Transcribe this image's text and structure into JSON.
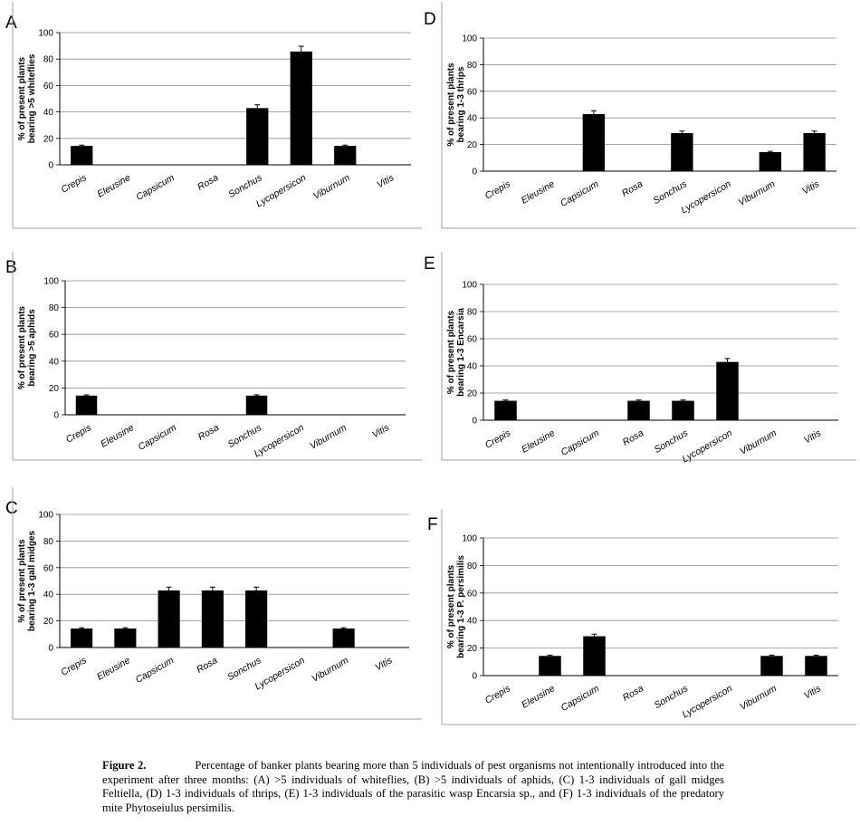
{
  "figure": {
    "caption_label": "Figure 2.",
    "caption_text": "Percentage of banker plants bearing more than 5 individuals of pest organisms not intentionally introduced into the experiment after three months: (A) >5 individuals of whiteflies, (B) >5 individuals of aphids, (C) 1-3 individuals of gall midges Feltiella, (D) 1-3 individuals of thrips, (E) 1-3 individuals of the parasitic wasp Encarsia sp., and (F) 1-3 individuals of the predatory mite Phytoseiulus persimilis."
  },
  "chart_data": [
    {
      "id": "A",
      "type": "bar",
      "ylabel_line1": "% of present plants",
      "ylabel_line2": "bearing >5 whiteflies",
      "categories": [
        "Crepis",
        "Eleusine",
        "Capsicum",
        "Rosa",
        "Sonchus",
        "Lycopersicon",
        "Viburnum",
        "Vitis"
      ],
      "values": [
        14.3,
        0,
        0,
        0,
        42.9,
        85.7,
        14.3,
        0
      ],
      "errors": [
        0.6,
        0,
        0,
        0,
        2.5,
        4.0,
        0.6,
        0
      ],
      "ylim": [
        0,
        100
      ],
      "yticks": [
        0,
        20,
        40,
        60,
        80,
        100
      ],
      "bar_color": "#000000",
      "grid": true
    },
    {
      "id": "B",
      "type": "bar",
      "ylabel_line1": "% of present plants",
      "ylabel_line2": "bearing >5 aphids",
      "categories": [
        "Crepis",
        "Eleusine",
        "Capsicum",
        "Rosa",
        "Sonchus",
        "Lycopersicon",
        "Viburnum",
        "Vitis"
      ],
      "values": [
        14.3,
        0,
        0,
        0,
        14.3,
        0,
        0,
        0
      ],
      "errors": [
        0.6,
        0,
        0,
        0,
        0.6,
        0,
        0,
        0
      ],
      "ylim": [
        0,
        100
      ],
      "yticks": [
        0,
        20,
        40,
        60,
        80,
        100
      ],
      "bar_color": "#000000",
      "grid": true
    },
    {
      "id": "C",
      "type": "bar",
      "ylabel_line1": "% of present plants",
      "ylabel_line2": "bearing 1-3 gall midges",
      "categories": [
        "Crepis",
        "Eleusine",
        "Capsicum",
        "Rosa",
        "Sonchus",
        "Lycopersicon",
        "Viburnum",
        "Vitis"
      ],
      "values": [
        14.3,
        14.3,
        42.9,
        42.9,
        42.9,
        0,
        14.3,
        0
      ],
      "errors": [
        0.6,
        0.6,
        2.5,
        2.5,
        2.5,
        0,
        0.6,
        0
      ],
      "ylim": [
        0,
        100
      ],
      "yticks": [
        0,
        20,
        40,
        60,
        80,
        100
      ],
      "bar_color": "#000000",
      "grid": true
    },
    {
      "id": "D",
      "type": "bar",
      "ylabel_line1": "% of present plants",
      "ylabel_line2": "bearing 1-3 thrips",
      "categories": [
        "Crepis",
        "Eleusine",
        "Capsicum",
        "Rosa",
        "Sonchus",
        "Lycopersicon",
        "Viburnum",
        "Vitis"
      ],
      "values": [
        0,
        0,
        42.9,
        0,
        28.6,
        0,
        14.3,
        28.6
      ],
      "errors": [
        0,
        0,
        2.5,
        0,
        1.5,
        0,
        0.6,
        1.5
      ],
      "ylim": [
        0,
        100
      ],
      "yticks": [
        0,
        20,
        40,
        60,
        80,
        100
      ],
      "bar_color": "#000000",
      "grid": true
    },
    {
      "id": "E",
      "type": "bar",
      "ylabel_line1": "% of present plants",
      "ylabel_line2": "bearing 1-3 Encarsia",
      "categories": [
        "Crepis",
        "Eleusine",
        "Capsicum",
        "Rosa",
        "Sonchus",
        "Lycopersicon",
        "Viburnum",
        "Vitis"
      ],
      "values": [
        14.3,
        0,
        0,
        14.3,
        14.3,
        42.9,
        0,
        0
      ],
      "errors": [
        0.6,
        0,
        0,
        0.6,
        0.6,
        2.5,
        0,
        0
      ],
      "ylim": [
        0,
        100
      ],
      "yticks": [
        0,
        20,
        40,
        60,
        80,
        100
      ],
      "bar_color": "#000000",
      "grid": true
    },
    {
      "id": "F",
      "type": "bar",
      "ylabel_line1": "% of present plants",
      "ylabel_line2": "bearing 1-3 P. persimilis",
      "categories": [
        "Crepis",
        "Eleusine",
        "Capsicum",
        "Rosa",
        "Sonchus",
        "Lycopersicon",
        "Viburnum",
        "Vitis"
      ],
      "values": [
        0,
        14.3,
        28.6,
        0,
        0,
        0,
        14.3,
        14.3
      ],
      "errors": [
        0,
        0.6,
        1.5,
        0,
        0,
        0,
        0.6,
        0.6
      ],
      "ylim": [
        0,
        100
      ],
      "yticks": [
        0,
        20,
        40,
        60,
        80,
        100
      ],
      "bar_color": "#000000",
      "grid": true
    }
  ]
}
